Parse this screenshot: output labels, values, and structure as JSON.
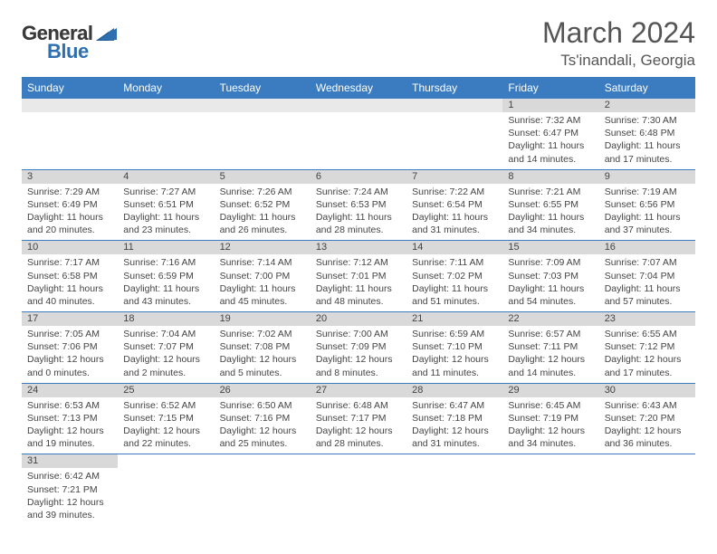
{
  "logo": {
    "word1": "General",
    "word2": "Blue"
  },
  "title": "March 2024",
  "location": "Ts'inandali, Georgia",
  "colors": {
    "header_bg": "#3b7bbf",
    "header_text": "#ffffff",
    "daynum_bg": "#d9d9d9",
    "row_border": "#3b7bbf",
    "text": "#444444",
    "title_text": "#555555"
  },
  "daysOfWeek": [
    "Sunday",
    "Monday",
    "Tuesday",
    "Wednesday",
    "Thursday",
    "Friday",
    "Saturday"
  ],
  "weeks": [
    [
      null,
      null,
      null,
      null,
      null,
      {
        "n": "1",
        "sr": "Sunrise: 7:32 AM",
        "ss": "Sunset: 6:47 PM",
        "dl": "Daylight: 11 hours and 14 minutes."
      },
      {
        "n": "2",
        "sr": "Sunrise: 7:30 AM",
        "ss": "Sunset: 6:48 PM",
        "dl": "Daylight: 11 hours and 17 minutes."
      }
    ],
    [
      {
        "n": "3",
        "sr": "Sunrise: 7:29 AM",
        "ss": "Sunset: 6:49 PM",
        "dl": "Daylight: 11 hours and 20 minutes."
      },
      {
        "n": "4",
        "sr": "Sunrise: 7:27 AM",
        "ss": "Sunset: 6:51 PM",
        "dl": "Daylight: 11 hours and 23 minutes."
      },
      {
        "n": "5",
        "sr": "Sunrise: 7:26 AM",
        "ss": "Sunset: 6:52 PM",
        "dl": "Daylight: 11 hours and 26 minutes."
      },
      {
        "n": "6",
        "sr": "Sunrise: 7:24 AM",
        "ss": "Sunset: 6:53 PM",
        "dl": "Daylight: 11 hours and 28 minutes."
      },
      {
        "n": "7",
        "sr": "Sunrise: 7:22 AM",
        "ss": "Sunset: 6:54 PM",
        "dl": "Daylight: 11 hours and 31 minutes."
      },
      {
        "n": "8",
        "sr": "Sunrise: 7:21 AM",
        "ss": "Sunset: 6:55 PM",
        "dl": "Daylight: 11 hours and 34 minutes."
      },
      {
        "n": "9",
        "sr": "Sunrise: 7:19 AM",
        "ss": "Sunset: 6:56 PM",
        "dl": "Daylight: 11 hours and 37 minutes."
      }
    ],
    [
      {
        "n": "10",
        "sr": "Sunrise: 7:17 AM",
        "ss": "Sunset: 6:58 PM",
        "dl": "Daylight: 11 hours and 40 minutes."
      },
      {
        "n": "11",
        "sr": "Sunrise: 7:16 AM",
        "ss": "Sunset: 6:59 PM",
        "dl": "Daylight: 11 hours and 43 minutes."
      },
      {
        "n": "12",
        "sr": "Sunrise: 7:14 AM",
        "ss": "Sunset: 7:00 PM",
        "dl": "Daylight: 11 hours and 45 minutes."
      },
      {
        "n": "13",
        "sr": "Sunrise: 7:12 AM",
        "ss": "Sunset: 7:01 PM",
        "dl": "Daylight: 11 hours and 48 minutes."
      },
      {
        "n": "14",
        "sr": "Sunrise: 7:11 AM",
        "ss": "Sunset: 7:02 PM",
        "dl": "Daylight: 11 hours and 51 minutes."
      },
      {
        "n": "15",
        "sr": "Sunrise: 7:09 AM",
        "ss": "Sunset: 7:03 PM",
        "dl": "Daylight: 11 hours and 54 minutes."
      },
      {
        "n": "16",
        "sr": "Sunrise: 7:07 AM",
        "ss": "Sunset: 7:04 PM",
        "dl": "Daylight: 11 hours and 57 minutes."
      }
    ],
    [
      {
        "n": "17",
        "sr": "Sunrise: 7:05 AM",
        "ss": "Sunset: 7:06 PM",
        "dl": "Daylight: 12 hours and 0 minutes."
      },
      {
        "n": "18",
        "sr": "Sunrise: 7:04 AM",
        "ss": "Sunset: 7:07 PM",
        "dl": "Daylight: 12 hours and 2 minutes."
      },
      {
        "n": "19",
        "sr": "Sunrise: 7:02 AM",
        "ss": "Sunset: 7:08 PM",
        "dl": "Daylight: 12 hours and 5 minutes."
      },
      {
        "n": "20",
        "sr": "Sunrise: 7:00 AM",
        "ss": "Sunset: 7:09 PM",
        "dl": "Daylight: 12 hours and 8 minutes."
      },
      {
        "n": "21",
        "sr": "Sunrise: 6:59 AM",
        "ss": "Sunset: 7:10 PM",
        "dl": "Daylight: 12 hours and 11 minutes."
      },
      {
        "n": "22",
        "sr": "Sunrise: 6:57 AM",
        "ss": "Sunset: 7:11 PM",
        "dl": "Daylight: 12 hours and 14 minutes."
      },
      {
        "n": "23",
        "sr": "Sunrise: 6:55 AM",
        "ss": "Sunset: 7:12 PM",
        "dl": "Daylight: 12 hours and 17 minutes."
      }
    ],
    [
      {
        "n": "24",
        "sr": "Sunrise: 6:53 AM",
        "ss": "Sunset: 7:13 PM",
        "dl": "Daylight: 12 hours and 19 minutes."
      },
      {
        "n": "25",
        "sr": "Sunrise: 6:52 AM",
        "ss": "Sunset: 7:15 PM",
        "dl": "Daylight: 12 hours and 22 minutes."
      },
      {
        "n": "26",
        "sr": "Sunrise: 6:50 AM",
        "ss": "Sunset: 7:16 PM",
        "dl": "Daylight: 12 hours and 25 minutes."
      },
      {
        "n": "27",
        "sr": "Sunrise: 6:48 AM",
        "ss": "Sunset: 7:17 PM",
        "dl": "Daylight: 12 hours and 28 minutes."
      },
      {
        "n": "28",
        "sr": "Sunrise: 6:47 AM",
        "ss": "Sunset: 7:18 PM",
        "dl": "Daylight: 12 hours and 31 minutes."
      },
      {
        "n": "29",
        "sr": "Sunrise: 6:45 AM",
        "ss": "Sunset: 7:19 PM",
        "dl": "Daylight: 12 hours and 34 minutes."
      },
      {
        "n": "30",
        "sr": "Sunrise: 6:43 AM",
        "ss": "Sunset: 7:20 PM",
        "dl": "Daylight: 12 hours and 36 minutes."
      }
    ],
    [
      {
        "n": "31",
        "sr": "Sunrise: 6:42 AM",
        "ss": "Sunset: 7:21 PM",
        "dl": "Daylight: 12 hours and 39 minutes."
      },
      null,
      null,
      null,
      null,
      null,
      null
    ]
  ]
}
